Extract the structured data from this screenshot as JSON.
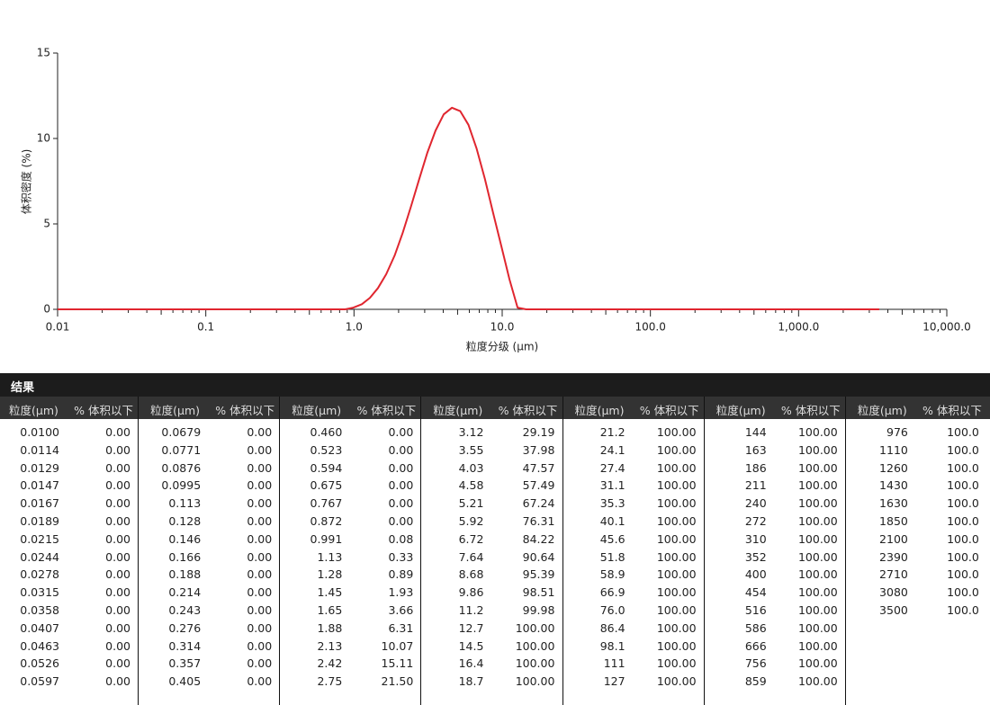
{
  "chart_data": {
    "type": "line",
    "y_label": "体积密度 (%)",
    "x_label": "粒度分级 (μm)",
    "log_x": true,
    "xlim": [
      0.01,
      10000
    ],
    "xticks": [
      0.01,
      0.1,
      {
        "value": 1,
        "label": "1.0"
      },
      {
        "value": 10,
        "label": "10.0"
      },
      {
        "value": 100,
        "label": "100.0"
      },
      {
        "value": 1000,
        "label": "1,000.0"
      },
      {
        "value": 10000,
        "label": "10,000.0"
      }
    ],
    "ylim": [
      0,
      15
    ],
    "yticks": [
      0,
      5,
      10,
      15
    ],
    "x": [
      0.01,
      0.872,
      0.991,
      1.13,
      1.28,
      1.45,
      1.65,
      1.88,
      2.13,
      2.42,
      2.75,
      3.12,
      3.55,
      4.03,
      4.58,
      5.21,
      5.92,
      6.72,
      7.64,
      8.68,
      9.86,
      11.2,
      12.7,
      14.5,
      3500
    ],
    "series": [
      {
        "color": "#e0262f",
        "values": [
          0,
          0,
          0.1,
          0.3,
          0.67,
          1.24,
          2.06,
          3.15,
          4.47,
          6.0,
          7.6,
          9.15,
          10.46,
          11.41,
          11.8,
          11.6,
          10.8,
          9.41,
          7.64,
          5.65,
          3.71,
          1.75,
          0.1,
          0,
          0
        ]
      }
    ]
  },
  "table": {
    "title": "结果",
    "groups": [
      {
        "size_header": "粒度(μm)",
        "pct_header": "% 体积以下",
        "rows": [
          [
            "0.0100",
            "0.00"
          ],
          [
            "0.0114",
            "0.00"
          ],
          [
            "0.0129",
            "0.00"
          ],
          [
            "0.0147",
            "0.00"
          ],
          [
            "0.0167",
            "0.00"
          ],
          [
            "0.0189",
            "0.00"
          ],
          [
            "0.0215",
            "0.00"
          ],
          [
            "0.0244",
            "0.00"
          ],
          [
            "0.0278",
            "0.00"
          ],
          [
            "0.0315",
            "0.00"
          ],
          [
            "0.0358",
            "0.00"
          ],
          [
            "0.0407",
            "0.00"
          ],
          [
            "0.0463",
            "0.00"
          ],
          [
            "0.0526",
            "0.00"
          ],
          [
            "0.0597",
            "0.00"
          ]
        ]
      },
      {
        "size_header": "粒度(μm)",
        "pct_header": "% 体积以下",
        "rows": [
          [
            "0.0679",
            "0.00"
          ],
          [
            "0.0771",
            "0.00"
          ],
          [
            "0.0876",
            "0.00"
          ],
          [
            "0.0995",
            "0.00"
          ],
          [
            "0.113",
            "0.00"
          ],
          [
            "0.128",
            "0.00"
          ],
          [
            "0.146",
            "0.00"
          ],
          [
            "0.166",
            "0.00"
          ],
          [
            "0.188",
            "0.00"
          ],
          [
            "0.214",
            "0.00"
          ],
          [
            "0.243",
            "0.00"
          ],
          [
            "0.276",
            "0.00"
          ],
          [
            "0.314",
            "0.00"
          ],
          [
            "0.357",
            "0.00"
          ],
          [
            "0.405",
            "0.00"
          ]
        ]
      },
      {
        "size_header": "粒度(μm)",
        "pct_header": "% 体积以下",
        "rows": [
          [
            "0.460",
            "0.00"
          ],
          [
            "0.523",
            "0.00"
          ],
          [
            "0.594",
            "0.00"
          ],
          [
            "0.675",
            "0.00"
          ],
          [
            "0.767",
            "0.00"
          ],
          [
            "0.872",
            "0.00"
          ],
          [
            "0.991",
            "0.08"
          ],
          [
            "1.13",
            "0.33"
          ],
          [
            "1.28",
            "0.89"
          ],
          [
            "1.45",
            "1.93"
          ],
          [
            "1.65",
            "3.66"
          ],
          [
            "1.88",
            "6.31"
          ],
          [
            "2.13",
            "10.07"
          ],
          [
            "2.42",
            "15.11"
          ],
          [
            "2.75",
            "21.50"
          ]
        ]
      },
      {
        "size_header": "粒度(μm)",
        "pct_header": "% 体积以下",
        "rows": [
          [
            "3.12",
            "29.19"
          ],
          [
            "3.55",
            "37.98"
          ],
          [
            "4.03",
            "47.57"
          ],
          [
            "4.58",
            "57.49"
          ],
          [
            "5.21",
            "67.24"
          ],
          [
            "5.92",
            "76.31"
          ],
          [
            "6.72",
            "84.22"
          ],
          [
            "7.64",
            "90.64"
          ],
          [
            "8.68",
            "95.39"
          ],
          [
            "9.86",
            "98.51"
          ],
          [
            "11.2",
            "99.98"
          ],
          [
            "12.7",
            "100.00"
          ],
          [
            "14.5",
            "100.00"
          ],
          [
            "16.4",
            "100.00"
          ],
          [
            "18.7",
            "100.00"
          ]
        ]
      },
      {
        "size_header": "粒度(μm)",
        "pct_header": "% 体积以下",
        "rows": [
          [
            "21.2",
            "100.00"
          ],
          [
            "24.1",
            "100.00"
          ],
          [
            "27.4",
            "100.00"
          ],
          [
            "31.1",
            "100.00"
          ],
          [
            "35.3",
            "100.00"
          ],
          [
            "40.1",
            "100.00"
          ],
          [
            "45.6",
            "100.00"
          ],
          [
            "51.8",
            "100.00"
          ],
          [
            "58.9",
            "100.00"
          ],
          [
            "66.9",
            "100.00"
          ],
          [
            "76.0",
            "100.00"
          ],
          [
            "86.4",
            "100.00"
          ],
          [
            "98.1",
            "100.00"
          ],
          [
            "111",
            "100.00"
          ],
          [
            "127",
            "100.00"
          ]
        ]
      },
      {
        "size_header": "粒度(μm)",
        "pct_header": "% 体积以下",
        "rows": [
          [
            "144",
            "100.00"
          ],
          [
            "163",
            "100.00"
          ],
          [
            "186",
            "100.00"
          ],
          [
            "211",
            "100.00"
          ],
          [
            "240",
            "100.00"
          ],
          [
            "272",
            "100.00"
          ],
          [
            "310",
            "100.00"
          ],
          [
            "352",
            "100.00"
          ],
          [
            "400",
            "100.00"
          ],
          [
            "454",
            "100.00"
          ],
          [
            "516",
            "100.00"
          ],
          [
            "586",
            "100.00"
          ],
          [
            "666",
            "100.00"
          ],
          [
            "756",
            "100.00"
          ],
          [
            "859",
            "100.00"
          ]
        ]
      },
      {
        "size_header": "粒度(μm)",
        "pct_header": "% 体积以下",
        "rows": [
          [
            "976",
            "100.0"
          ],
          [
            "1110",
            "100.0"
          ],
          [
            "1260",
            "100.0"
          ],
          [
            "1430",
            "100.0"
          ],
          [
            "1630",
            "100.0"
          ],
          [
            "1850",
            "100.0"
          ],
          [
            "2100",
            "100.0"
          ],
          [
            "2390",
            "100.0"
          ],
          [
            "2710",
            "100.0"
          ],
          [
            "3080",
            "100.0"
          ],
          [
            "3500",
            "100.0"
          ]
        ]
      }
    ]
  }
}
